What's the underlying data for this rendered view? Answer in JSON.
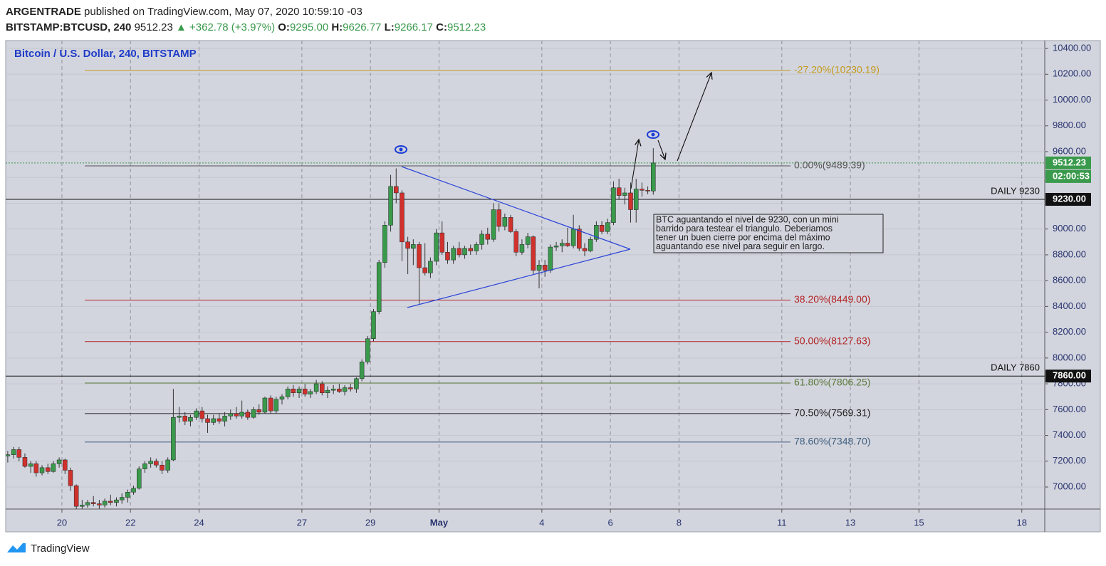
{
  "header": {
    "publisher": "ARGENTRADE",
    "published": "published on TradingView.com, May 07, 2020 10:59:10 -03",
    "symbol": "BITSTAMP:BTCUSD, 240",
    "last": "9512.23",
    "change": "▲ +362.78 (+3.97%)",
    "o_label": "O:",
    "o": "9295.00",
    "h_label": "H:",
    "h": "9626.77",
    "l_label": "L:",
    "l": "9266.17",
    "c_label": "C:",
    "c": "9512.23"
  },
  "chart_data": {
    "type": "candlestick",
    "title": "Bitcoin / U.S. Dollar, 240, BITSTAMP",
    "up_color": "#3a9a4c",
    "down_color": "#d0312d",
    "wick_color": "#333333",
    "grid": true,
    "x": [
      18.42,
      18.59,
      18.75,
      18.92,
      19.09,
      19.25,
      19.42,
      19.59,
      19.75,
      19.92,
      20.09,
      20.25,
      20.42,
      20.59,
      20.75,
      20.92,
      21.09,
      21.25,
      21.42,
      21.59,
      21.75,
      21.92,
      22.09,
      22.25,
      22.42,
      22.59,
      22.75,
      22.92,
      23.09,
      23.25,
      23.42,
      23.59,
      23.75,
      23.92,
      24.09,
      24.25,
      24.42,
      24.59,
      24.75,
      24.92,
      25.09,
      25.25,
      25.42,
      25.59,
      25.75,
      25.92,
      26.09,
      26.25,
      26.42,
      26.59,
      26.75,
      26.92,
      27.09,
      27.25,
      27.42,
      27.59,
      27.75,
      27.92,
      28.09,
      28.25,
      28.42,
      28.59,
      28.75,
      28.92,
      29.09,
      29.25,
      29.42,
      29.59,
      29.75,
      29.92,
      30.09,
      30.25,
      30.42,
      30.59,
      30.75,
      30.92,
      31.09,
      31.25,
      31.42,
      31.59,
      31.75,
      31.92,
      32.09,
      32.25,
      32.42,
      32.59,
      32.75,
      32.92,
      33.09,
      33.25,
      33.42,
      33.59,
      33.75,
      33.92,
      34.09,
      34.25,
      34.42,
      34.59,
      34.75,
      34.92,
      35.09,
      35.25,
      35.42,
      35.59,
      35.75,
      35.92,
      36.09,
      36.25,
      36.42,
      36.59,
      36.75,
      36.92,
      37.09,
      37.25
    ],
    "open": [
      7240,
      7250,
      7290,
      7230,
      7160,
      7180,
      7110,
      7150,
      7120,
      7180,
      7210,
      7130,
      7010,
      6850,
      6860,
      6880,
      6870,
      6860,
      6890,
      6880,
      6900,
      6920,
      6960,
      6990,
      7140,
      7180,
      7200,
      7170,
      7130,
      7210,
      7540,
      7550,
      7510,
      7540,
      7590,
      7530,
      7500,
      7530,
      7510,
      7550,
      7570,
      7550,
      7580,
      7540,
      7600,
      7580,
      7690,
      7590,
      7680,
      7700,
      7760,
      7730,
      7760,
      7720,
      7740,
      7800,
      7730,
      7750,
      7760,
      7740,
      7770,
      7760,
      7840,
      7970,
      8150,
      8360,
      8740,
      9030,
      9330,
      9280,
      8900,
      8850,
      8880,
      8700,
      8660,
      8750,
      8970,
      8820,
      8760,
      8850,
      8800,
      8850,
      8830,
      8880,
      8960,
      8920,
      9150,
      9020,
      9090,
      8980,
      8820,
      8880,
      8940,
      8680,
      8720,
      8680,
      8860,
      8870,
      8890,
      8870,
      9000,
      8850,
      8830,
      8920,
      9030,
      8980,
      9050,
      9320,
      9260,
      9280,
      9150,
      9310,
      9300,
      9295
    ],
    "high": [
      7280,
      7310,
      7310,
      7260,
      7200,
      7200,
      7170,
      7180,
      7200,
      7230,
      7220,
      7150,
      7020,
      6900,
      6900,
      6930,
      6900,
      6910,
      6940,
      6920,
      6950,
      6980,
      7010,
      7160,
      7200,
      7230,
      7220,
      7200,
      7230,
      7760,
      7620,
      7580,
      7560,
      7610,
      7620,
      7560,
      7560,
      7570,
      7580,
      7600,
      7620,
      7670,
      7600,
      7620,
      7640,
      7700,
      7710,
      7700,
      7720,
      7780,
      7790,
      7780,
      7800,
      7760,
      7830,
      7820,
      7780,
      7790,
      7800,
      7790,
      7800,
      7850,
      7990,
      8170,
      8380,
      8760,
      9060,
      9420,
      9470,
      9300,
      8940,
      8920,
      8900,
      8890,
      8780,
      9000,
      9060,
      8900,
      8870,
      8900,
      8870,
      8880,
      8900,
      8990,
      9010,
      9200,
      9200,
      9120,
      9110,
      9000,
      8920,
      8970,
      8950,
      8760,
      8760,
      8880,
      8900,
      8920,
      9010,
      9110,
      9030,
      8890,
      8940,
      9060,
      9060,
      9080,
      9370,
      9390,
      9320,
      9360,
      9390,
      9360,
      9330,
      9626.77
    ],
    "low": [
      7190,
      7220,
      7200,
      7150,
      7110,
      7080,
      7090,
      7100,
      7110,
      7150,
      7100,
      6970,
      6830,
      6830,
      6840,
      6850,
      6830,
      6840,
      6860,
      6850,
      6870,
      6880,
      6940,
      6980,
      7110,
      7150,
      7150,
      7100,
      7110,
      7200,
      7500,
      7480,
      7470,
      7520,
      7500,
      7420,
      7480,
      7490,
      7470,
      7520,
      7530,
      7530,
      7520,
      7530,
      7560,
      7570,
      7570,
      7570,
      7640,
      7680,
      7700,
      7690,
      7700,
      7690,
      7720,
      7710,
      7690,
      7720,
      7730,
      7710,
      7740,
      7730,
      7820,
      7950,
      8130,
      8340,
      8700,
      8980,
      9200,
      8750,
      8650,
      8720,
      8420,
      8640,
      8620,
      8720,
      8800,
      8730,
      8730,
      8780,
      8770,
      8800,
      8800,
      8840,
      8880,
      8900,
      8980,
      8990,
      8970,
      8790,
      8800,
      8850,
      8650,
      8540,
      8630,
      8660,
      8830,
      8820,
      8860,
      8850,
      8830,
      8790,
      8820,
      8900,
      8960,
      8960,
      9030,
      9230,
      9190,
      9050,
      9050,
      9250,
      9270,
      9266.17
    ],
    "close": [
      7250,
      7290,
      7230,
      7160,
      7180,
      7110,
      7150,
      7120,
      7180,
      7210,
      7130,
      7010,
      6850,
      6860,
      6880,
      6870,
      6860,
      6890,
      6880,
      6900,
      6920,
      6960,
      6990,
      7140,
      7180,
      7200,
      7170,
      7130,
      7210,
      7540,
      7550,
      7510,
      7540,
      7590,
      7530,
      7500,
      7530,
      7510,
      7550,
      7570,
      7550,
      7580,
      7540,
      7600,
      7580,
      7690,
      7590,
      7680,
      7700,
      7760,
      7730,
      7760,
      7720,
      7740,
      7800,
      7730,
      7750,
      7760,
      7740,
      7770,
      7760,
      7840,
      7970,
      8150,
      8360,
      8740,
      9030,
      9330,
      9280,
      8900,
      8850,
      8880,
      8700,
      8660,
      8750,
      8970,
      8820,
      8760,
      8850,
      8800,
      8850,
      8830,
      8880,
      8960,
      8920,
      9150,
      9020,
      9090,
      8980,
      8820,
      8880,
      8940,
      8680,
      8720,
      8680,
      8860,
      8870,
      8890,
      8870,
      9000,
      8850,
      8830,
      8920,
      9030,
      8980,
      9050,
      9320,
      9260,
      9280,
      9150,
      9310,
      9300,
      9295,
      9512.23
    ],
    "xlim": [
      18.36,
      48.67
    ],
    "xticks": [
      20,
      22,
      24,
      27,
      29,
      {
        "value": 31,
        "label": "May"
      },
      {
        "value": 34,
        "label": "4"
      },
      {
        "value": 36,
        "label": "6"
      },
      {
        "value": 38,
        "label": "8"
      },
      {
        "value": 41,
        "label": "11"
      },
      {
        "value": 43,
        "label": "13"
      },
      {
        "value": 45,
        "label": "15"
      },
      {
        "value": 48,
        "label": "18"
      }
    ],
    "ylim": [
      6829,
      10461
    ],
    "yticks": [
      {
        "value": 7000,
        "label": "7000.00"
      },
      {
        "value": 7200,
        "label": "7200.00"
      },
      {
        "value": 7400,
        "label": "7400.00"
      },
      {
        "value": 7600,
        "label": "7600.00"
      },
      {
        "value": 7800,
        "label": "7800.00"
      },
      {
        "value": 8000,
        "label": "8000.00"
      },
      {
        "value": 8200,
        "label": "8200.00"
      },
      {
        "value": 8400,
        "label": "8400.00"
      },
      {
        "value": 8600,
        "label": "8600.00"
      },
      {
        "value": 8800,
        "label": "8800.00"
      },
      {
        "value": 9000,
        "label": "9000.00"
      },
      {
        "value": 9200,
        "label": "9200.00"
      },
      {
        "value": 9400,
        "label": "9400.00"
      },
      {
        "value": 9600,
        "label": "9600.00"
      },
      {
        "value": 9800,
        "label": "9800.00"
      },
      {
        "value": 10000,
        "label": "10000.00"
      },
      {
        "value": 10200,
        "label": "10200.00"
      },
      {
        "value": 10400,
        "label": "10400.00"
      }
    ],
    "last_price": {
      "value": 9512.23,
      "label": "9512.23",
      "color": "#3a9a4c"
    },
    "countdown": "02:00:53",
    "levels": [
      {
        "name": "DAILY 9230",
        "value": 9230,
        "label": "9230.00"
      },
      {
        "name": "DAILY 7860",
        "value": 7860,
        "label": "7860.00"
      }
    ],
    "fib": [
      {
        "value": 10230.19,
        "label": "-27.20%(10230.19)",
        "color": "#c49a1a"
      },
      {
        "value": 9489.39,
        "label": "0.00%(9489.39)",
        "color": "#555555"
      },
      {
        "value": 8449.0,
        "label": "38.20%(8449.00)",
        "color": "#b22222"
      },
      {
        "value": 8127.63,
        "label": "50.00%(8127.63)",
        "color": "#b22222"
      },
      {
        "value": 7806.25,
        "label": "61.80%(7806.25)",
        "color": "#5b7a3a"
      },
      {
        "value": 7569.31,
        "label": "70.50%(7569.31)",
        "color": "#222222"
      },
      {
        "value": 7348.7,
        "label": "78.60%(7348.70)",
        "color": "#3f5f7f"
      }
    ],
    "note": [
      "BTC aguantando el nivel de 9230, con un mini",
      "barrido para testear el triangulo. Deberiamos",
      "tener un buen cierre por encima del máximo",
      "aguantando ese nivel para seguir en largo."
    ]
  },
  "footer": {
    "brand": "TradingView"
  }
}
